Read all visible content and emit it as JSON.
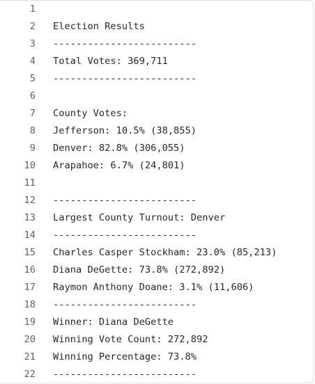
{
  "lines": [
    {
      "number": 1
    },
    {
      "number": 2,
      "text": "Election Results"
    },
    {
      "number": 3,
      "text": "-------------------------"
    },
    {
      "number": 4,
      "text": "Total Votes: 369,711"
    },
    {
      "number": 5,
      "text": "-------------------------"
    },
    {
      "number": 6
    },
    {
      "number": 7,
      "text": "County Votes:"
    },
    {
      "number": 8,
      "text": "Jefferson: 10.5% (38,855)"
    },
    {
      "number": 9,
      "text": "Denver: 82.8% (306,055)"
    },
    {
      "number": 10,
      "text": "Arapahoe: 6.7% (24,801)"
    },
    {
      "number": 11
    },
    {
      "number": 12,
      "text": "-------------------------"
    },
    {
      "number": 13,
      "text": "Largest County Turnout: Denver"
    },
    {
      "number": 14,
      "text": "-------------------------"
    },
    {
      "number": 15,
      "text": "Charles Casper Stockham: 23.0% (85,213)"
    },
    {
      "number": 16,
      "text": "Diana DeGette: 73.8% (272,892)"
    },
    {
      "number": 17,
      "text": "Raymon Anthony Doane: 3.1% (11,606)"
    },
    {
      "number": 18,
      "text": "-------------------------"
    },
    {
      "number": 19,
      "text": "Winner: Diana DeGette"
    },
    {
      "number": 20,
      "text": "Winning Vote Count: 272,892"
    },
    {
      "number": 21,
      "text": "Winning Percentage: 73.8%"
    },
    {
      "number": 22,
      "text": "-------------------------"
    }
  ]
}
